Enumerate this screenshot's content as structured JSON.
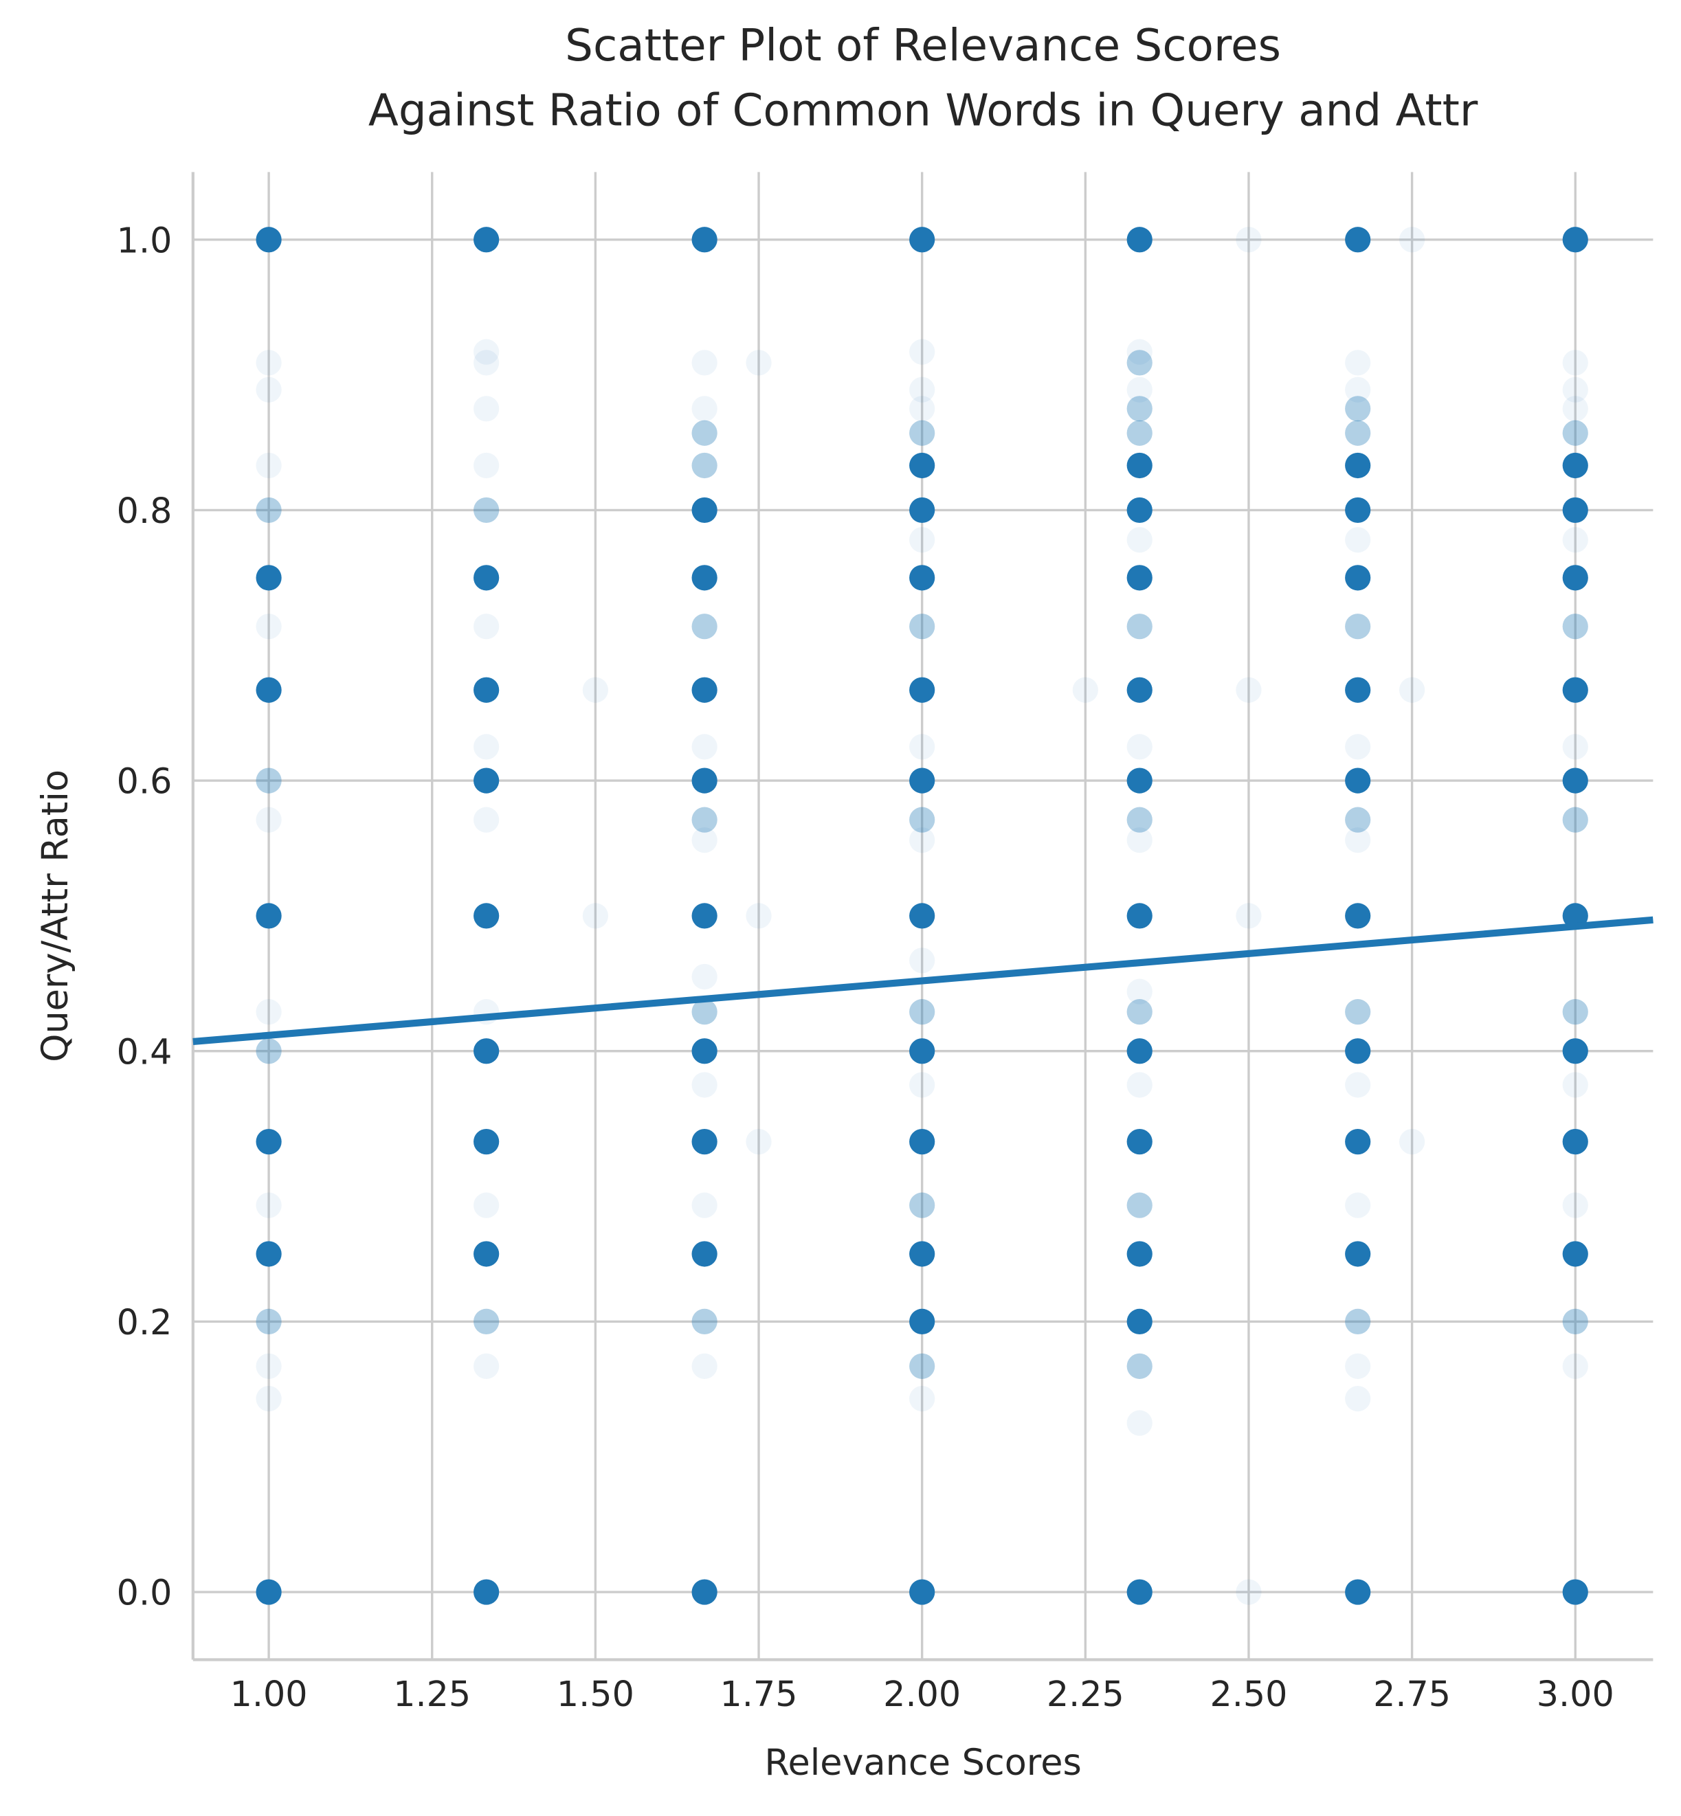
{
  "chart_data": {
    "type": "scatter",
    "title": [
      "Scatter Plot of Relevance Scores",
      "Against Ratio of Common Words in Query and Attr"
    ],
    "x_label": "Relevance Scores",
    "y_label": "Query/Attr Ratio",
    "xlim": [
      0.884,
      3.119
    ],
    "ylim": [
      -0.05,
      1.05
    ],
    "xticks": [
      {
        "value": 1,
        "label": "1.00"
      },
      1.25,
      {
        "value": 1.5,
        "label": "1.50"
      },
      1.75,
      {
        "value": 2,
        "label": "2.00"
      },
      2.25,
      {
        "value": 2.5,
        "label": "2.50"
      },
      2.75,
      {
        "value": 3,
        "label": "3.00"
      }
    ],
    "yticks": [
      {
        "value": 0,
        "label": "0.0"
      },
      0.2,
      0.4,
      0.6,
      0.8,
      {
        "value": 1,
        "label": "1.0"
      }
    ],
    "grid": true,
    "series": [
      {
        "color": "#1f77b4",
        "alpha": 0.07,
        "x": [
          1,
          1,
          1,
          1,
          1,
          1,
          1,
          1,
          1,
          1.333,
          1.333,
          1.333,
          1.333,
          1.333,
          1.333,
          1.333,
          1.333,
          1.333,
          1.333,
          1.667,
          1.667,
          1.667,
          1.667,
          1.667,
          1.667,
          1.667,
          1.667,
          2,
          2,
          2,
          2,
          2,
          2,
          2,
          2,
          2,
          2.333,
          2.333,
          2.333,
          2.333,
          2.333,
          2.333,
          2.333,
          2.333,
          2.667,
          2.667,
          2.667,
          2.667,
          2.667,
          2.667,
          2.667,
          2.667,
          2.667,
          3,
          3,
          3,
          3,
          3,
          3,
          3,
          3,
          2.5,
          2.5,
          2.5,
          2.5,
          2.25,
          1.75,
          1.75,
          1.75,
          2.75,
          2.75,
          2.75,
          1.5,
          1.5
        ],
        "y": [
          0.909,
          0.889,
          0.833,
          0.714,
          0.571,
          0.429,
          0.286,
          0.167,
          0.143,
          0.917,
          0.909,
          0.875,
          0.833,
          0.714,
          0.625,
          0.571,
          0.429,
          0.286,
          0.167,
          0.909,
          0.875,
          0.625,
          0.556,
          0.375,
          0.286,
          0.167,
          0.455,
          0.917,
          0.889,
          0.875,
          0.778,
          0.625,
          0.556,
          0.375,
          0.143,
          0.467,
          0.917,
          0.889,
          0.778,
          0.625,
          0.556,
          0.375,
          0.125,
          0.444,
          0.909,
          0.889,
          0.778,
          0.625,
          0.375,
          0.286,
          0.167,
          0.143,
          0.556,
          0.909,
          0.889,
          0.875,
          0.778,
          0.625,
          0.286,
          0.167,
          0.375,
          1,
          0.667,
          0.5,
          0,
          0.667,
          0.909,
          0.5,
          0.333,
          1,
          0.667,
          0.333,
          0.667,
          0.5
        ]
      },
      {
        "color": "#1f77b4",
        "alpha": 0.35,
        "x": [
          1,
          1,
          1,
          1,
          1.333,
          1.333,
          1.667,
          1.667,
          1.667,
          1.667,
          1.667,
          1.667,
          2,
          2,
          2,
          2,
          2,
          2,
          2.333,
          2.333,
          2.333,
          2.333,
          2.333,
          2.333,
          2.333,
          2.333,
          2.667,
          2.667,
          2.667,
          2.667,
          2.667,
          2.667,
          3,
          3,
          3,
          3,
          3
        ],
        "y": [
          0.8,
          0.6,
          0.4,
          0.2,
          0.8,
          0.2,
          0.833,
          0.2,
          0.429,
          0.571,
          0.714,
          0.857,
          0.857,
          0.714,
          0.571,
          0.429,
          0.286,
          0.167,
          0.857,
          0.875,
          0.714,
          0.571,
          0.429,
          0.286,
          0.167,
          0.909,
          0.857,
          0.714,
          0.571,
          0.2,
          0.875,
          0.429,
          0.857,
          0.714,
          0.2,
          0.571,
          0.429
        ]
      },
      {
        "color": "#1f77b4",
        "alpha": 1,
        "x": [
          1,
          1,
          1,
          1,
          1,
          1,
          1,
          1.333,
          1.333,
          1.333,
          1.333,
          1.333,
          1.333,
          1.333,
          1.333,
          1.333,
          1.667,
          1.667,
          1.667,
          1.667,
          1.667,
          1.667,
          1.667,
          1.667,
          1.667,
          1.667,
          2,
          2,
          2,
          2,
          2,
          2,
          2,
          2,
          2,
          2,
          2,
          2,
          2.333,
          2.333,
          2.333,
          2.333,
          2.333,
          2.333,
          2.333,
          2.333,
          2.333,
          2.333,
          2.333,
          2.333,
          2.667,
          2.667,
          2.667,
          2.667,
          2.667,
          2.667,
          2.667,
          2.667,
          2.667,
          2.667,
          2.667,
          3,
          3,
          3,
          3,
          3,
          3,
          3,
          3,
          3,
          3,
          3
        ],
        "y": [
          1,
          0.75,
          0.667,
          0.5,
          0.333,
          0.25,
          0,
          1,
          0.75,
          0.667,
          0.6,
          0.5,
          0.4,
          0.333,
          0.25,
          0,
          1,
          0.8,
          0.75,
          0.667,
          0.6,
          0.5,
          0.4,
          0.333,
          0.25,
          0,
          1,
          0.833,
          0.8,
          0.75,
          0.667,
          0.6,
          0.5,
          0.4,
          0.333,
          0.25,
          0.2,
          0,
          1,
          0.833,
          0.8,
          0.75,
          0.667,
          0.6,
          0.5,
          0.4,
          0.333,
          0.25,
          0.2,
          0,
          1,
          0.833,
          0.8,
          0.75,
          0.667,
          0.6,
          0.5,
          0.4,
          0.333,
          0.25,
          0,
          1,
          0.833,
          0.8,
          0.75,
          0.667,
          0.6,
          0.5,
          0.4,
          0.333,
          0.25,
          0
        ]
      }
    ],
    "fit_line": {
      "color": "#1f77b4",
      "x": [
        0.884,
        3.119
      ],
      "y": [
        0.407,
        0.497
      ]
    }
  }
}
